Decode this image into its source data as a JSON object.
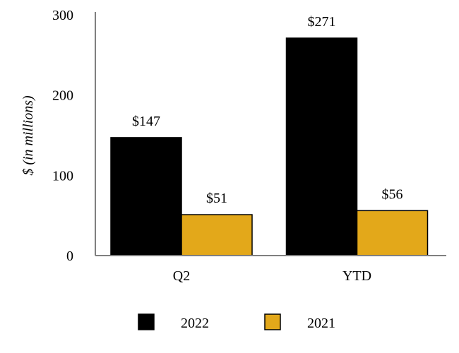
{
  "chart_data": {
    "type": "bar",
    "categories": [
      "Q2",
      "YTD"
    ],
    "series": [
      {
        "name": "2022",
        "values": [
          147,
          271
        ],
        "color": "#000000",
        "labels": [
          "$147",
          "$271"
        ]
      },
      {
        "name": "2021",
        "values": [
          51,
          56
        ],
        "color": "#E3A81A",
        "labels": [
          "$51",
          "$56"
        ]
      }
    ],
    "ylabel": "$ (in millions)",
    "ylim": [
      0,
      300
    ],
    "yticks": [
      "0",
      "100",
      "200",
      "300"
    ],
    "grid": false,
    "legend_position": "bottom"
  }
}
